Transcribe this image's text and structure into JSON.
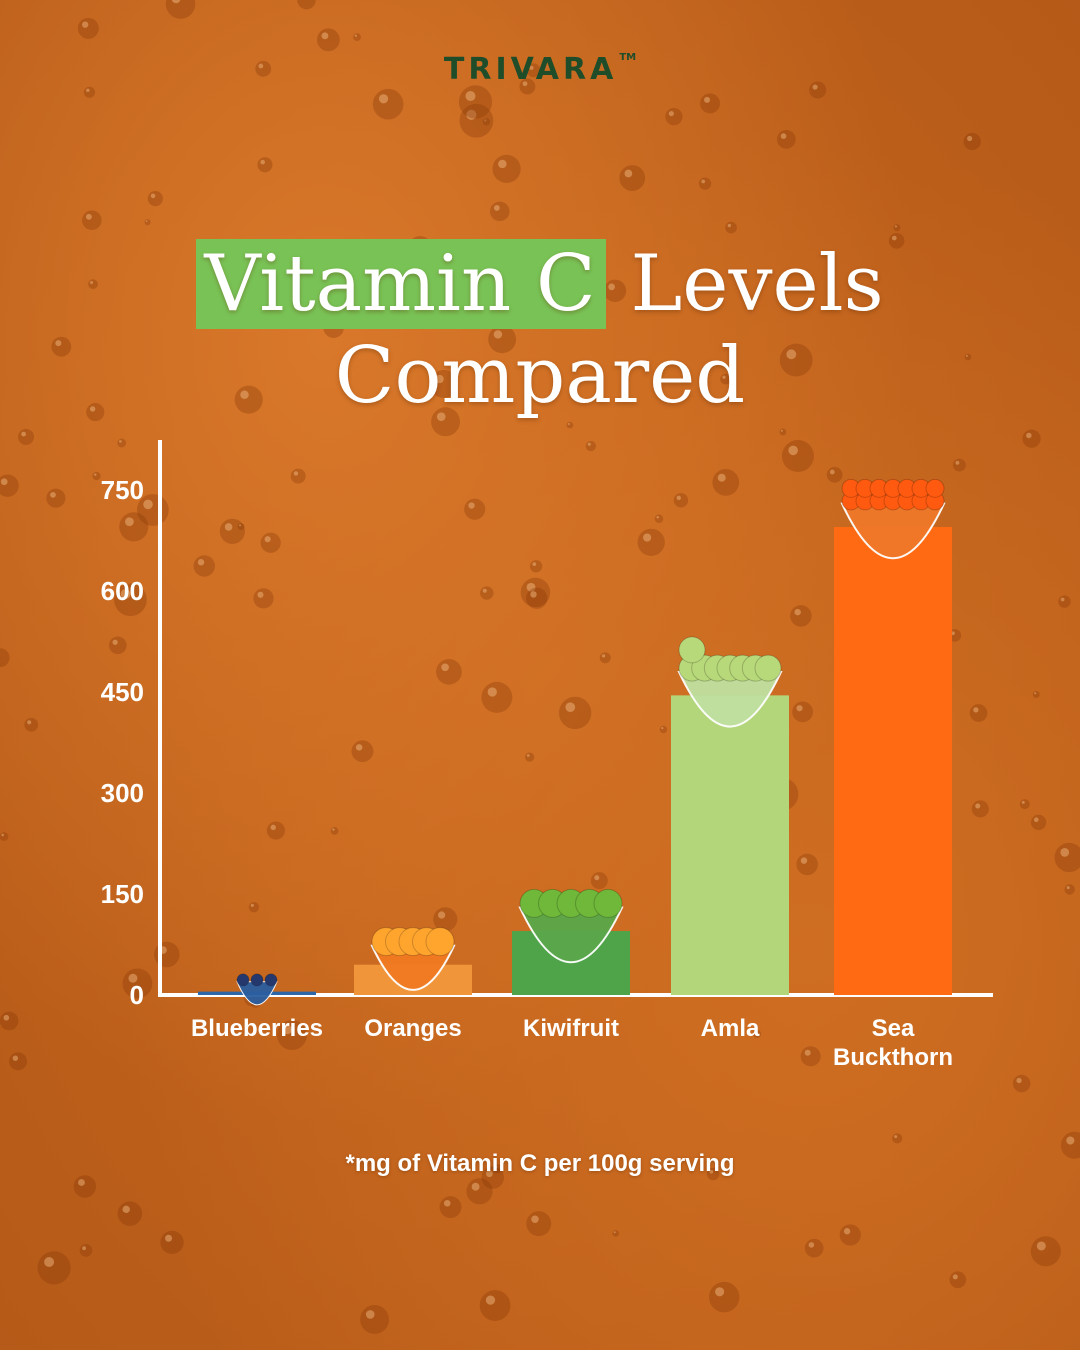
{
  "brand": {
    "name": "TRIVARA",
    "trademark": "TM",
    "color": "#1f4d2a"
  },
  "title": {
    "highlight": "Vitamin C",
    "rest": "Levels",
    "line2": "Compared",
    "highlight_color": "#79c356"
  },
  "footnote": "*mg of Vitamin C per 100g serving",
  "chart_data": {
    "type": "bar",
    "categories": [
      "Blueberries",
      "Oranges",
      "Kiwifruit",
      "Amla",
      "Sea Buckthorn"
    ],
    "category_lines": [
      [
        "Blueberries"
      ],
      [
        "Oranges"
      ],
      [
        "Kiwifruit"
      ],
      [
        "Amla"
      ],
      [
        "Sea",
        "Buckthorn"
      ]
    ],
    "values": [
      5,
      45,
      95,
      445,
      695
    ],
    "colors": [
      "#2d67a8",
      "#f0953a",
      "#4fa44a",
      "#b3d67a",
      "#ff6a12"
    ],
    "bowl_icons": [
      "blueberry-bowl-icon",
      "orange-bowl-icon",
      "kiwi-bowl-icon",
      "amla-bowl-icon",
      "sea-buckthorn-bowl-icon"
    ],
    "yticks": [
      0,
      150,
      300,
      450,
      600,
      750
    ],
    "ylim": [
      0,
      750
    ],
    "grid": false,
    "axis_color": "#ffffff"
  }
}
